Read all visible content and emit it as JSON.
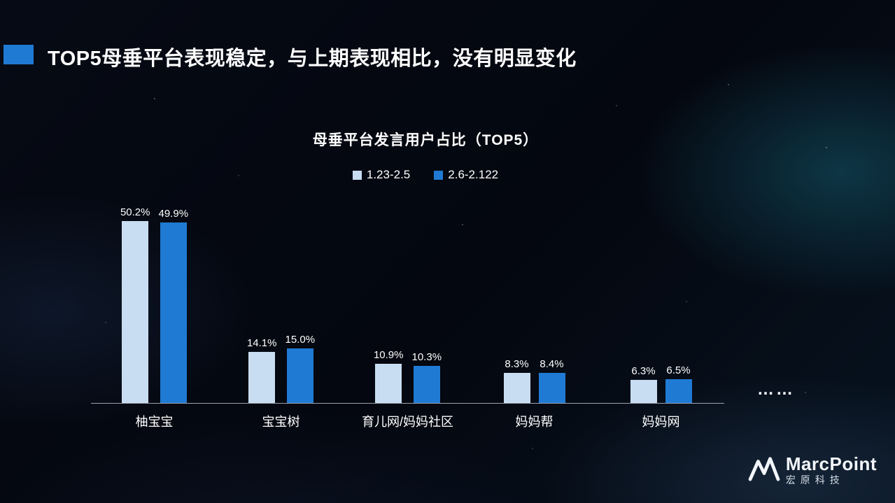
{
  "slide": {
    "title": "TOP5母垂平台表现稳定，与上期表现相比，没有明显变化",
    "ellipsis": "……",
    "logo": {
      "brand": "MarcPoint",
      "subtitle": "宏原科技"
    }
  },
  "chart_data": {
    "type": "bar",
    "title": "母垂平台发言用户占比（TOP5）",
    "categories": [
      "柚宝宝",
      "宝宝树",
      "育儿网/妈妈社区",
      "妈妈帮",
      "妈妈网"
    ],
    "series": [
      {
        "name": "1.23-2.5",
        "color": "#c9ddf2",
        "values": [
          50.2,
          14.1,
          10.9,
          8.3,
          6.3
        ]
      },
      {
        "name": "2.6-2.122",
        "color": "#1f7ad4",
        "values": [
          49.9,
          15.0,
          10.3,
          8.4,
          6.5
        ]
      }
    ],
    "value_suffix": "%",
    "ylim": [
      0,
      58
    ],
    "grid": false,
    "legend_position": "top"
  }
}
